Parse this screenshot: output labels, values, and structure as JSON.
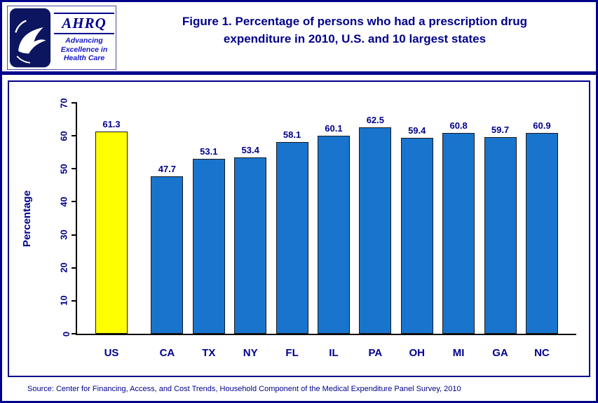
{
  "header": {
    "logo": {
      "hhs_icon": "hhs-eagle-icon",
      "ahrq_acronym": "AHRQ",
      "ahrq_tagline": "Advancing Excellence in Health Care"
    }
  },
  "chart_data": {
    "type": "bar",
    "title": "Figure 1. Percentage of persons who had a prescription drug expenditure in 2010, U.S. and 10 largest states",
    "categories": [
      "US",
      "CA",
      "TX",
      "NY",
      "FL",
      "IL",
      "PA",
      "OH",
      "MI",
      "GA",
      "NC"
    ],
    "values": [
      61.3,
      47.7,
      53.1,
      53.4,
      58.1,
      60.1,
      62.5,
      59.4,
      60.8,
      59.7,
      60.9
    ],
    "ylabel": "Percentage",
    "ylim": [
      0,
      70
    ],
    "yticks": [
      0,
      10,
      20,
      30,
      40,
      50,
      60,
      70
    ],
    "bar_color": "#1874CD",
    "highlight_category": "US",
    "highlight_color": "#FFFF00",
    "grid": false,
    "legend": "none"
  },
  "footer": {
    "source": "Source: Center for Financing, Access, and Cost Trends, Household Component of the Medical Expenditure Panel Survey,  2010"
  },
  "colors": {
    "accent_navy": "#00008B",
    "axis_black": "#000000"
  }
}
